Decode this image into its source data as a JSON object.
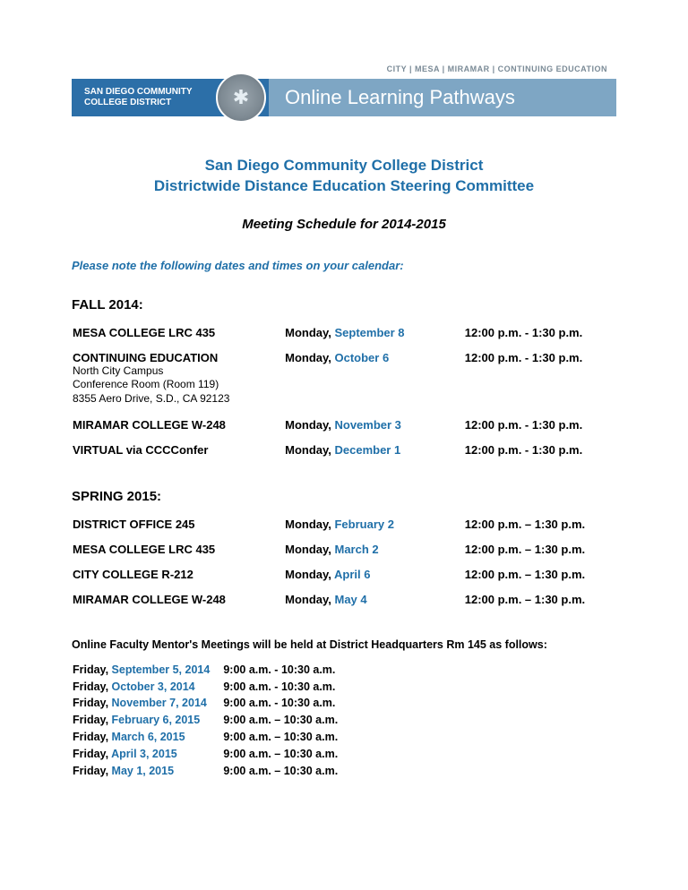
{
  "banner": {
    "top_text": "CITY | MESA | MIRAMAR | CONTINUING EDUCATION",
    "left_line1": "SAN DIEGO COMMUNITY",
    "left_line2": "COLLEGE DISTRICT",
    "right_text": "Online Learning Pathways"
  },
  "title": {
    "line1": "San Diego Community College District",
    "line2": "Districtwide Distance Education Steering Committee"
  },
  "subtitle": "Meeting Schedule for 2014-2015",
  "note": "Please note the following dates and times on your calendar:",
  "colors": {
    "accent": "#1f6fa8",
    "banner_dark": "#2c6fa8",
    "banner_light": "#7ea6c4",
    "banner_top_text": "#7a8a96"
  },
  "fall": {
    "heading": "FALL 2014:",
    "rows": [
      {
        "location": "MESA COLLEGE LRC 435",
        "sublines": [],
        "day": "Monday, ",
        "date": "September 8",
        "time": "12:00 p.m. - 1:30 p.m."
      },
      {
        "location": "CONTINUING EDUCATION",
        "sublines": [
          "North City Campus",
          "Conference Room (Room 119)",
          "8355 Aero Drive, S.D., CA 92123"
        ],
        "day": "Monday, ",
        "date": "October 6",
        "time": "12:00 p.m. - 1:30 p.m."
      },
      {
        "location": "MIRAMAR COLLEGE W-248",
        "sublines": [],
        "day": "Monday, ",
        "date": "November 3",
        "time": "12:00 p.m. - 1:30 p.m."
      },
      {
        "location": "VIRTUAL via CCCConfer",
        "sublines": [],
        "day": "Monday, ",
        "date": "December 1",
        "time": "12:00 p.m. - 1:30 p.m."
      }
    ]
  },
  "spring": {
    "heading": "SPRING 2015:",
    "rows": [
      {
        "location": "DISTRICT OFFICE 245",
        "sublines": [],
        "day": "Monday, ",
        "date": "February 2",
        "time": "12:00 p.m. – 1:30 p.m."
      },
      {
        "location": "MESA COLLEGE LRC 435",
        "sublines": [],
        "day": "Monday, ",
        "date": "March 2",
        "time": "12:00 p.m. – 1:30 p.m."
      },
      {
        "location": "CITY COLLEGE R-212",
        "sublines": [],
        "day": "Monday, ",
        "date": "April 6",
        "time": "12:00 p.m. – 1:30 p.m."
      },
      {
        "location": "MIRAMAR COLLEGE W-248",
        "sublines": [],
        "day": "Monday, ",
        "date": "May 4",
        "time": "12:00 p.m. – 1:30 p.m."
      }
    ]
  },
  "mentor": {
    "heading": "Online Faculty Mentor's Meetings will be held at District Headquarters Rm 145 as follows:",
    "rows": [
      {
        "day": "Friday, ",
        "date": "September 5, 2014",
        "time": "9:00 a.m. - 10:30 a.m."
      },
      {
        "day": "Friday, ",
        "date": "October 3, 2014",
        "time": "9:00 a.m. - 10:30 a.m."
      },
      {
        "day": "Friday, ",
        "date": "November 7, 2014",
        "time": "9:00 a.m. - 10:30 a.m."
      },
      {
        "day": "Friday, ",
        "date": "February 6, 2015",
        "time": "9:00 a.m. – 10:30 a.m."
      },
      {
        "day": "Friday, ",
        "date": "March 6, 2015",
        "time": "9:00 a.m. – 10:30 a.m."
      },
      {
        "day": "Friday, ",
        "date": "April 3, 2015",
        "time": "9:00 a.m. – 10:30 a.m."
      },
      {
        "day": "Friday, ",
        "date": "May 1, 2015",
        "time": "9:00 a.m. – 10:30 a.m."
      }
    ]
  }
}
